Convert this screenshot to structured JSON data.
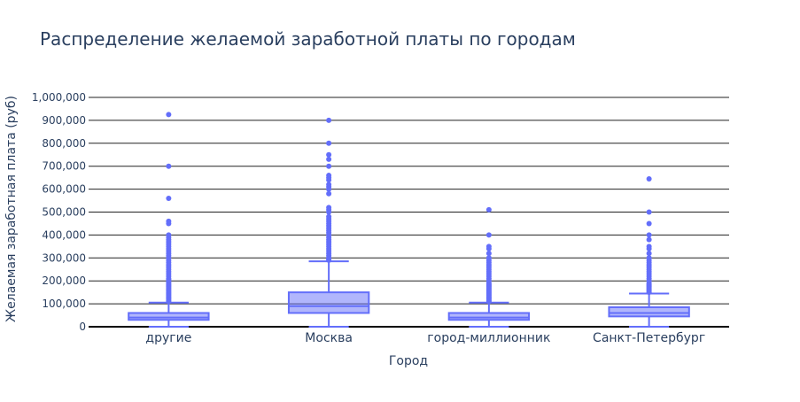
{
  "chart_data": {
    "type": "box",
    "title": "Распределение желаемой заработной платы по городам",
    "xlabel": "Город",
    "ylabel": "Желаемая заработная плата (руб)",
    "ylim": [
      0,
      1000000
    ],
    "yticks": [
      0,
      100000,
      200000,
      300000,
      400000,
      500000,
      600000,
      700000,
      800000,
      900000,
      1000000
    ],
    "ytick_labels": [
      "0",
      "100,000",
      "200,000",
      "300,000",
      "400,000",
      "500,000",
      "600,000",
      "700,000",
      "800,000",
      "900,000",
      "1,000,000"
    ],
    "grid": true,
    "color": "#636efa",
    "categories": [
      "другие",
      "Москва",
      "город-миллионник",
      "Санкт-Петербург"
    ],
    "boxes": [
      {
        "category": "другие",
        "q1": 30000,
        "median": 40000,
        "q3": 60000,
        "lowerfence": 0,
        "upperfence": 105000,
        "outliers": [
          110000,
          115000,
          120000,
          125000,
          130000,
          135000,
          140000,
          145000,
          150000,
          155000,
          160000,
          165000,
          170000,
          175000,
          180000,
          185000,
          190000,
          195000,
          200000,
          205000,
          210000,
          220000,
          230000,
          240000,
          250000,
          260000,
          270000,
          280000,
          290000,
          300000,
          310000,
          320000,
          330000,
          340000,
          350000,
          360000,
          370000,
          380000,
          390000,
          400000,
          450000,
          460000,
          560000,
          700000,
          925000
        ]
      },
      {
        "category": "Москва",
        "q1": 60000,
        "median": 90000,
        "q3": 150000,
        "lowerfence": 0,
        "upperfence": 285000,
        "outliers": [
          290000,
          295000,
          300000,
          310000,
          320000,
          330000,
          340000,
          350000,
          360000,
          370000,
          380000,
          390000,
          400000,
          410000,
          420000,
          430000,
          440000,
          450000,
          460000,
          470000,
          480000,
          500000,
          510000,
          520000,
          580000,
          600000,
          610000,
          620000,
          640000,
          650000,
          660000,
          700000,
          730000,
          750000,
          800000,
          900000
        ]
      },
      {
        "category": "город-миллионник",
        "q1": 30000,
        "median": 40000,
        "q3": 60000,
        "lowerfence": 0,
        "upperfence": 105000,
        "outliers": [
          110000,
          115000,
          120000,
          125000,
          130000,
          135000,
          140000,
          145000,
          150000,
          155000,
          160000,
          165000,
          170000,
          175000,
          180000,
          185000,
          190000,
          200000,
          210000,
          220000,
          230000,
          240000,
          250000,
          260000,
          270000,
          280000,
          290000,
          300000,
          320000,
          340000,
          350000,
          400000,
          510000
        ]
      },
      {
        "category": "Санкт-Петербург",
        "q1": 45000,
        "median": 60000,
        "q3": 85000,
        "lowerfence": 0,
        "upperfence": 145000,
        "outliers": [
          150000,
          155000,
          160000,
          165000,
          170000,
          175000,
          180000,
          185000,
          190000,
          200000,
          210000,
          220000,
          230000,
          240000,
          250000,
          260000,
          270000,
          280000,
          290000,
          300000,
          320000,
          340000,
          350000,
          380000,
          400000,
          450000,
          500000,
          645000
        ]
      }
    ]
  }
}
